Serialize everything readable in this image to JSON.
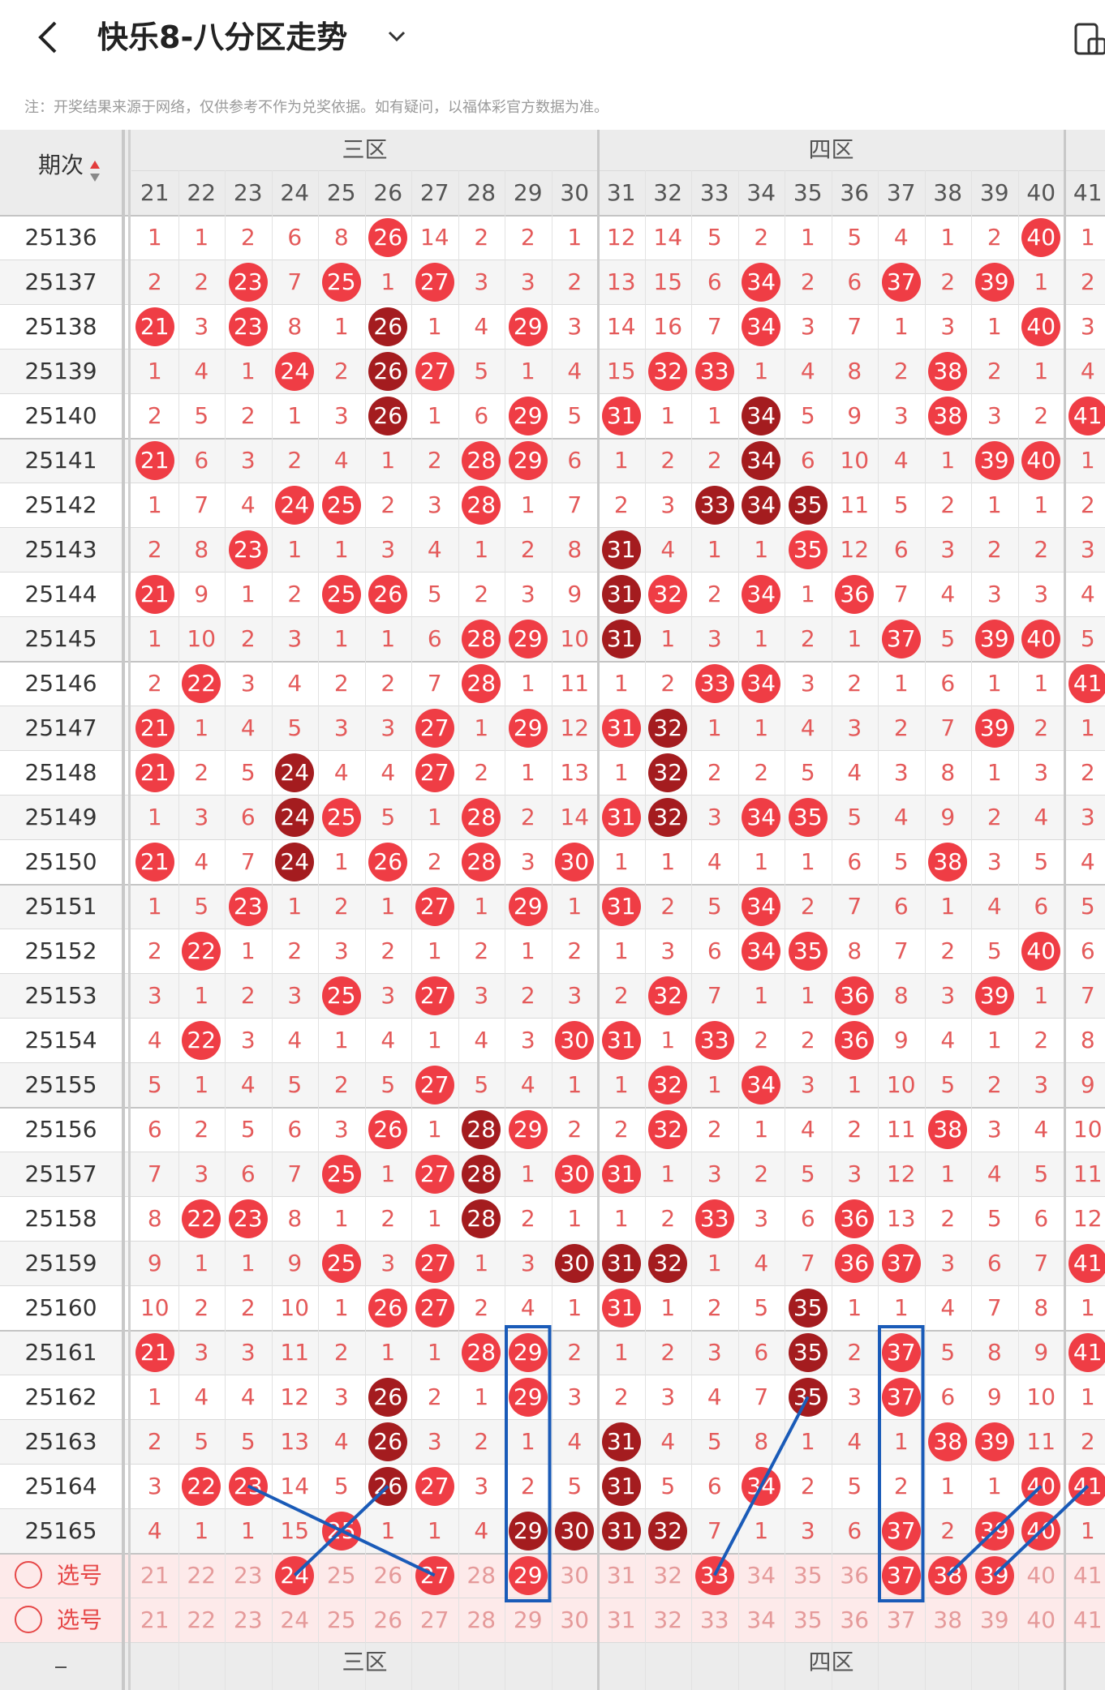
{
  "header": {
    "title": "快乐8-八分区走势"
  },
  "note": "注：开奖结果来源于网络，仅供参考不作为兑奖依据。如有疑问，以福体彩官方数据为准。",
  "table": {
    "issue_label": "期次",
    "zones": [
      "三区",
      "四区"
    ],
    "columns": [
      21,
      22,
      23,
      24,
      25,
      26,
      27,
      28,
      29,
      30,
      31,
      32,
      33,
      34,
      35,
      36,
      37,
      38,
      39,
      40,
      41
    ],
    "rows": [
      {
        "issue": "25136",
        "cells": [
          1,
          1,
          2,
          6,
          8,
          "h:26",
          14,
          2,
          2,
          1,
          12,
          14,
          5,
          2,
          1,
          5,
          4,
          1,
          2,
          "h:40",
          1
        ]
      },
      {
        "issue": "25137",
        "cells": [
          2,
          2,
          "h:23",
          7,
          "h:25",
          1,
          "h:27",
          3,
          3,
          2,
          13,
          15,
          6,
          "h:34",
          2,
          6,
          "h:37",
          2,
          "h:39",
          1,
          2
        ]
      },
      {
        "issue": "25138",
        "cells": [
          "h:21",
          3,
          "h:23",
          8,
          1,
          "d:26",
          1,
          4,
          "h:29",
          3,
          14,
          16,
          7,
          "h:34",
          3,
          7,
          1,
          3,
          1,
          "h:40",
          3
        ]
      },
      {
        "issue": "25139",
        "cells": [
          1,
          4,
          1,
          "h:24",
          2,
          "d:26",
          "h:27",
          5,
          1,
          4,
          15,
          "h:32",
          "h:33",
          1,
          4,
          8,
          2,
          "h:38",
          2,
          1,
          4
        ]
      },
      {
        "issue": "25140",
        "cells": [
          2,
          5,
          2,
          1,
          3,
          "d:26",
          1,
          6,
          "h:29",
          5,
          "h:31",
          1,
          1,
          "d:34",
          5,
          9,
          3,
          "h:38",
          3,
          2,
          "h:41"
        ]
      },
      {
        "issue": "25141",
        "cells": [
          "h:21",
          6,
          3,
          2,
          4,
          1,
          2,
          "h:28",
          "h:29",
          6,
          1,
          2,
          2,
          "d:34",
          6,
          10,
          4,
          1,
          "h:39",
          "h:40",
          1
        ]
      },
      {
        "issue": "25142",
        "cells": [
          1,
          7,
          4,
          "h:24",
          "h:25",
          2,
          3,
          "h:28",
          1,
          7,
          2,
          3,
          "d:33",
          "d:34",
          "d:35",
          11,
          5,
          2,
          1,
          1,
          2
        ]
      },
      {
        "issue": "25143",
        "cells": [
          2,
          8,
          "h:23",
          1,
          1,
          3,
          4,
          1,
          2,
          8,
          "d:31",
          4,
          1,
          1,
          "h:35",
          12,
          6,
          3,
          2,
          2,
          3
        ]
      },
      {
        "issue": "25144",
        "cells": [
          "h:21",
          9,
          1,
          2,
          "h:25",
          "h:26",
          5,
          2,
          3,
          9,
          "d:31",
          "h:32",
          2,
          "h:34",
          1,
          "h:36",
          7,
          4,
          3,
          3,
          4
        ]
      },
      {
        "issue": "25145",
        "cells": [
          1,
          10,
          2,
          3,
          1,
          1,
          6,
          "h:28",
          "h:29",
          10,
          "d:31",
          1,
          3,
          1,
          2,
          1,
          "h:37",
          5,
          "h:39",
          "h:40",
          5
        ]
      },
      {
        "issue": "25146",
        "cells": [
          2,
          "h:22",
          3,
          4,
          2,
          2,
          7,
          "h:28",
          1,
          11,
          1,
          2,
          "h:33",
          "h:34",
          3,
          2,
          1,
          6,
          1,
          1,
          "h:41"
        ]
      },
      {
        "issue": "25147",
        "cells": [
          "h:21",
          1,
          4,
          5,
          3,
          3,
          "h:27",
          1,
          "h:29",
          12,
          "h:31",
          "d:32",
          1,
          1,
          4,
          3,
          2,
          7,
          "h:39",
          2,
          1
        ]
      },
      {
        "issue": "25148",
        "cells": [
          "h:21",
          2,
          5,
          "d:24",
          4,
          4,
          "h:27",
          2,
          1,
          13,
          1,
          "d:32",
          2,
          2,
          5,
          4,
          3,
          8,
          1,
          3,
          2
        ]
      },
      {
        "issue": "25149",
        "cells": [
          1,
          3,
          6,
          "d:24",
          "h:25",
          5,
          1,
          "h:28",
          2,
          14,
          "h:31",
          "d:32",
          3,
          "h:34",
          "h:35",
          5,
          4,
          9,
          2,
          4,
          3
        ]
      },
      {
        "issue": "25150",
        "cells": [
          "h:21",
          4,
          7,
          "d:24",
          1,
          "h:26",
          2,
          "h:28",
          3,
          "h:30",
          1,
          1,
          4,
          1,
          1,
          6,
          5,
          "h:38",
          3,
          5,
          4
        ]
      },
      {
        "issue": "25151",
        "cells": [
          1,
          5,
          "h:23",
          1,
          2,
          1,
          "h:27",
          1,
          "h:29",
          1,
          "h:31",
          2,
          5,
          "h:34",
          2,
          7,
          6,
          1,
          4,
          6,
          5
        ]
      },
      {
        "issue": "25152",
        "cells": [
          2,
          "h:22",
          1,
          2,
          3,
          2,
          1,
          2,
          1,
          2,
          1,
          3,
          6,
          "h:34",
          "h:35",
          8,
          7,
          2,
          5,
          "h:40",
          6
        ]
      },
      {
        "issue": "25153",
        "cells": [
          3,
          1,
          2,
          3,
          "h:25",
          3,
          "h:27",
          3,
          2,
          3,
          2,
          "h:32",
          7,
          1,
          1,
          "h:36",
          8,
          3,
          "h:39",
          1,
          7
        ]
      },
      {
        "issue": "25154",
        "cells": [
          4,
          "h:22",
          3,
          4,
          1,
          4,
          1,
          4,
          3,
          "h:30",
          "h:31",
          1,
          "h:33",
          2,
          2,
          "h:36",
          9,
          4,
          1,
          2,
          8
        ]
      },
      {
        "issue": "25155",
        "cells": [
          5,
          1,
          4,
          5,
          2,
          5,
          "h:27",
          5,
          4,
          1,
          1,
          "h:32",
          1,
          "h:34",
          3,
          1,
          10,
          5,
          2,
          3,
          9
        ]
      },
      {
        "issue": "25156",
        "cells": [
          6,
          2,
          5,
          6,
          3,
          "h:26",
          1,
          "d:28",
          "h:29",
          2,
          2,
          "h:32",
          2,
          1,
          4,
          2,
          11,
          "h:38",
          3,
          4,
          10
        ]
      },
      {
        "issue": "25157",
        "cells": [
          7,
          3,
          6,
          7,
          "h:25",
          1,
          "h:27",
          "d:28",
          1,
          "h:30",
          "h:31",
          1,
          3,
          2,
          5,
          3,
          12,
          1,
          4,
          5,
          11
        ]
      },
      {
        "issue": "25158",
        "cells": [
          8,
          "h:22",
          "h:23",
          8,
          1,
          2,
          1,
          "d:28",
          2,
          1,
          1,
          2,
          "h:33",
          3,
          6,
          "h:36",
          13,
          2,
          5,
          6,
          12
        ]
      },
      {
        "issue": "25159",
        "cells": [
          9,
          1,
          1,
          9,
          "h:25",
          3,
          "h:27",
          1,
          3,
          "d:30",
          "d:31",
          "d:32",
          1,
          4,
          7,
          "h:36",
          "h:37",
          3,
          6,
          7,
          "h:41"
        ]
      },
      {
        "issue": "25160",
        "cells": [
          10,
          2,
          2,
          10,
          1,
          "h:26",
          "h:27",
          2,
          4,
          1,
          "h:31",
          1,
          2,
          5,
          "d:35",
          1,
          1,
          4,
          7,
          8,
          1
        ]
      },
      {
        "issue": "25161",
        "cells": [
          "h:21",
          3,
          3,
          11,
          2,
          1,
          1,
          "h:28",
          "h:29",
          2,
          1,
          2,
          3,
          6,
          "d:35",
          2,
          "h:37",
          5,
          8,
          9,
          "h:41"
        ]
      },
      {
        "issue": "25162",
        "cells": [
          1,
          4,
          4,
          12,
          3,
          "d:26",
          2,
          1,
          "h:29",
          3,
          2,
          3,
          4,
          7,
          "d:35",
          3,
          "h:37",
          6,
          9,
          10,
          1
        ]
      },
      {
        "issue": "25163",
        "cells": [
          2,
          5,
          5,
          13,
          4,
          "d:26",
          3,
          2,
          1,
          4,
          "d:31",
          4,
          5,
          8,
          1,
          4,
          1,
          "h:38",
          "h:39",
          11,
          2
        ]
      },
      {
        "issue": "25164",
        "cells": [
          3,
          "h:22",
          "h:23",
          14,
          5,
          "d:26",
          "h:27",
          3,
          2,
          5,
          "d:31",
          5,
          6,
          "h:34",
          2,
          5,
          2,
          1,
          1,
          "h:40",
          "h:41"
        ]
      },
      {
        "issue": "25165",
        "cells": [
          4,
          1,
          1,
          15,
          "h:25",
          1,
          1,
          4,
          "d:29",
          "d:30",
          "d:31",
          "d:32",
          7,
          1,
          3,
          6,
          "h:37",
          2,
          "h:39",
          "h:40",
          1
        ]
      }
    ],
    "pick_rows": [
      {
        "label": "选号",
        "selected": [
          24,
          27,
          29,
          33,
          37,
          38,
          39
        ]
      },
      {
        "label": "选号",
        "selected": []
      }
    ]
  },
  "colors": {
    "ball_red": "#ef3d45",
    "ball_dark": "#a41c1f",
    "line_blue": "#1a5bb8",
    "accent": "#e64848"
  }
}
